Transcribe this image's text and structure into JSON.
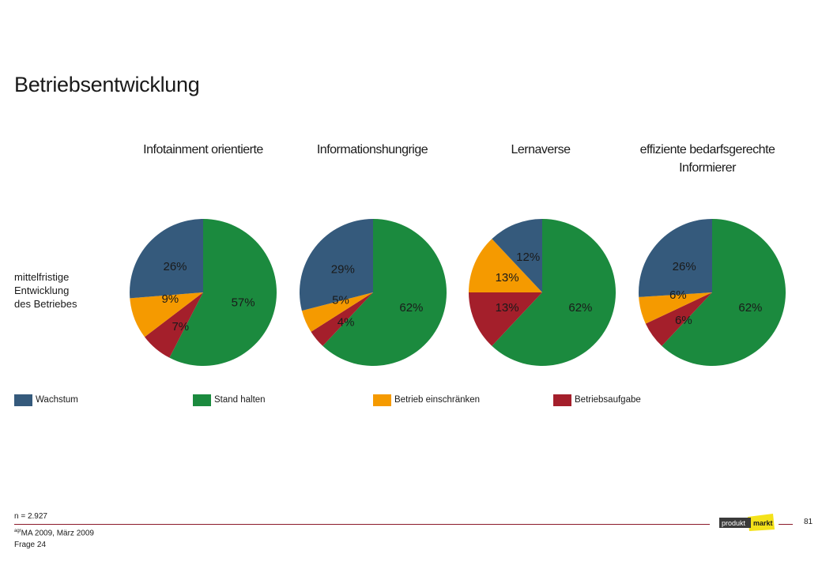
{
  "title": "Betriebsentwicklung",
  "row_label": [
    "mittelfristige",
    "Entwicklung",
    "des Betriebes"
  ],
  "colors": {
    "Wachstum": "#355a7c",
    "Stand halten": "#1b8a3e",
    "Betrieb einschränken": "#f59a00",
    "Betriebsaufgabe": "#a41f2b"
  },
  "chart_data": [
    {
      "type": "pie",
      "title_lines": [
        "Infotainment orientierte"
      ],
      "labels": [
        "Stand halten",
        "Betriebsaufgabe",
        "Betrieb einschränken",
        "Wachstum"
      ],
      "values": [
        57,
        7,
        9,
        26
      ],
      "data_labels": [
        "57%",
        "7%",
        "9%",
        "26%"
      ]
    },
    {
      "type": "pie",
      "title_lines": [
        "Informationshungrige"
      ],
      "labels": [
        "Stand halten",
        "Betriebsaufgabe",
        "Betrieb einschränken",
        "Wachstum"
      ],
      "values": [
        62,
        4,
        5,
        29
      ],
      "data_labels": [
        "62%",
        "4%",
        "5%",
        "29%"
      ]
    },
    {
      "type": "pie",
      "title_lines": [
        "Lernaverse"
      ],
      "labels": [
        "Stand halten",
        "Betriebsaufgabe",
        "Betrieb einschränken",
        "Wachstum"
      ],
      "values": [
        62,
        13,
        13,
        12
      ],
      "data_labels": [
        "62%",
        "13%",
        "13%",
        "12%"
      ]
    },
    {
      "type": "pie",
      "title_lines": [
        "effiziente bedarfsgerechte",
        "Informierer"
      ],
      "labels": [
        "Stand halten",
        "Betriebsaufgabe",
        "Betrieb einschränken",
        "Wachstum"
      ],
      "values": [
        62,
        6,
        6,
        26
      ],
      "data_labels": [
        "62%",
        "6%",
        "6%",
        "26%"
      ]
    }
  ],
  "legend": [
    "Wachstum",
    "Stand halten",
    "Betrieb einschränken",
    "Betriebsaufgabe"
  ],
  "footer": {
    "n": "n = 2.927",
    "source_sup": "agr",
    "source": "MA 2009, März 2009",
    "question": "Frage 24",
    "page_number": "81",
    "logo_text_1": "produkt",
    "logo_text_2": "markt"
  }
}
